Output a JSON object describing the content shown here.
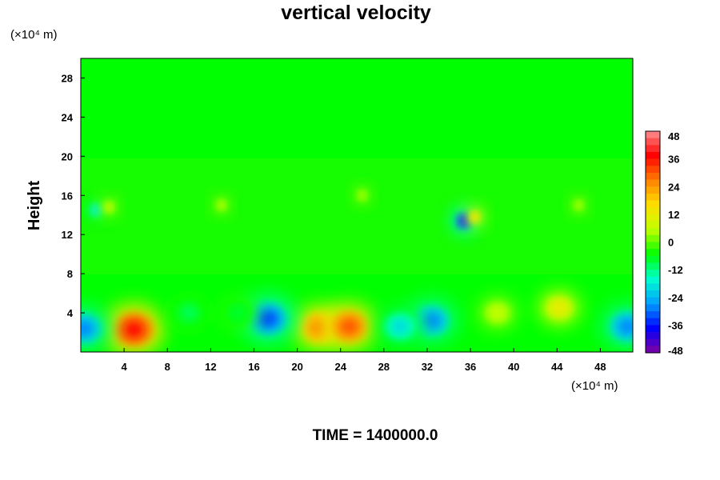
{
  "chart_data": {
    "type": "heatmap",
    "title": "vertical velocity",
    "ylabel": "Height",
    "x_unit": "(×10⁴ m)",
    "y_unit": "(×10⁴ m)",
    "footer": "TIME = 1400000.0",
    "xlim": [
      0,
      51
    ],
    "ylim": [
      0,
      30
    ],
    "x_ticks": [
      4,
      8,
      12,
      16,
      20,
      24,
      28,
      32,
      36,
      40,
      44,
      48
    ],
    "y_ticks": [
      4,
      8,
      12,
      16,
      20,
      24,
      28
    ],
    "colorbar": {
      "range": [
        -48,
        48
      ],
      "ticks": [
        48,
        36,
        24,
        12,
        0,
        -12,
        -24,
        -36,
        -48
      ]
    },
    "colormap": [
      "#8000a0",
      "#0000ff",
      "#00a0ff",
      "#00ffd0",
      "#00ff00",
      "#c0ff00",
      "#ffe000",
      "#ff8000",
      "#ff0000",
      "#ff9090"
    ],
    "features": [
      {
        "x": 4.9,
        "y": 2.3,
        "value": 36
      },
      {
        "x": 22.0,
        "y": 2.5,
        "value": 26
      },
      {
        "x": 24.8,
        "y": 2.6,
        "value": 30
      },
      {
        "x": 17.3,
        "y": 3.4,
        "value": -32
      },
      {
        "x": 32.4,
        "y": 3.2,
        "value": -28
      },
      {
        "x": 29.5,
        "y": 2.6,
        "value": -20
      },
      {
        "x": 0.3,
        "y": 2.4,
        "value": -28
      },
      {
        "x": 50.5,
        "y": 2.6,
        "value": -28
      },
      {
        "x": 35.4,
        "y": 13.4,
        "value": -40
      },
      {
        "x": 36.4,
        "y": 13.8,
        "value": 16
      },
      {
        "x": 1.4,
        "y": 14.5,
        "value": -20
      },
      {
        "x": 2.6,
        "y": 14.8,
        "value": 8
      },
      {
        "x": 44.2,
        "y": 4.5,
        "value": 12
      },
      {
        "x": 38.5,
        "y": 4.0,
        "value": 6
      },
      {
        "x": 10.0,
        "y": 4.0,
        "value": -10
      },
      {
        "x": 14.5,
        "y": 4.0,
        "value": -8
      },
      {
        "x": 13.0,
        "y": 15.0,
        "value": 6
      },
      {
        "x": 26.0,
        "y": 16.0,
        "value": 5
      },
      {
        "x": 46.0,
        "y": 15.0,
        "value": 5
      }
    ]
  }
}
